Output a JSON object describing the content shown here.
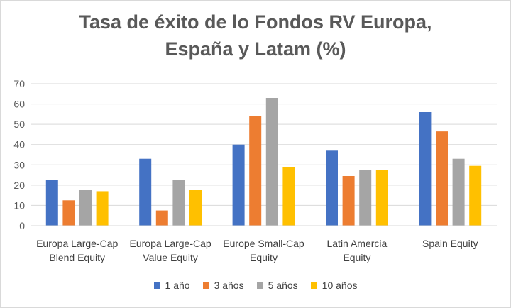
{
  "chart_data": {
    "type": "bar",
    "title_line1": "Tasa de éxito de lo Fondos  RV Europa,",
    "title_line2": "España y Latam (%)",
    "categories": [
      [
        "Europa Large-Cap",
        "Blend Equity"
      ],
      [
        "Europa Large-Cap",
        "Value Equity"
      ],
      [
        "Europe Small-Cap",
        "Equity"
      ],
      [
        "Latin Amercia",
        "Equity"
      ],
      [
        "Spain Equity"
      ]
    ],
    "series": [
      {
        "name": "1 año",
        "color": "#4472c4",
        "values": [
          22.5,
          33,
          40,
          37,
          56
        ]
      },
      {
        "name": "3 años",
        "color": "#ed7d31",
        "values": [
          12.5,
          7.5,
          54,
          24.5,
          46.5
        ]
      },
      {
        "name": "5 años",
        "color": "#a5a5a5",
        "values": [
          17.5,
          22.5,
          63,
          27.5,
          33
        ]
      },
      {
        "name": "10 años",
        "color": "#ffc000",
        "values": [
          17,
          17.5,
          29,
          27.5,
          29.5
        ]
      }
    ],
    "yticks": [
      0,
      10,
      20,
      30,
      40,
      50,
      60,
      70
    ],
    "ylim": [
      0,
      70
    ],
    "grid": true,
    "legend_position": "bottom"
  }
}
